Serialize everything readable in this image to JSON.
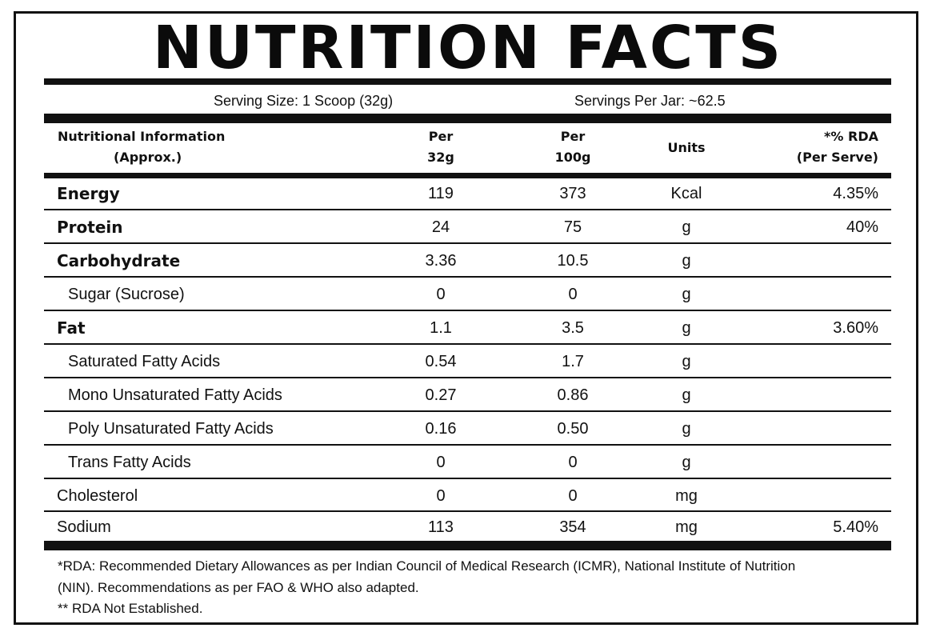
{
  "title": "NUTRITION FACTS",
  "serving": {
    "size": "Serving Size: 1 Scoop (32g)",
    "per_jar": "Servings Per Jar: ~62.5"
  },
  "headers": {
    "nutrition_line1": "Nutritional Information",
    "nutrition_line2": "(Approx.)",
    "per32_line1": "Per",
    "per32_line2": "32g",
    "per100_line1": "Per",
    "per100_line2": "100g",
    "units": "Units",
    "rda_line1": "*% RDA",
    "rda_line2": "(Per Serve)"
  },
  "rows": [
    {
      "name": "Energy",
      "per32": "119",
      "per100": "373",
      "unit": "Kcal",
      "rda": "4.35%"
    },
    {
      "name": "Protein",
      "per32": "24",
      "per100": "75",
      "unit": "g",
      "rda": "40%"
    },
    {
      "name": "Carbohydrate",
      "per32": "3.36",
      "per100": "10.5",
      "unit": "g",
      "rda": ""
    },
    {
      "name": "Sugar (Sucrose)",
      "per32": "0",
      "per100": "0",
      "unit": "g",
      "rda": ""
    },
    {
      "name": "Fat",
      "per32": "1.1",
      "per100": "3.5",
      "unit": "g",
      "rda": "3.60%"
    },
    {
      "name": "Saturated Fatty Acids",
      "per32": "0.54",
      "per100": "1.7",
      "unit": "g",
      "rda": ""
    },
    {
      "name": "Mono Unsaturated Fatty Acids",
      "per32": "0.27",
      "per100": "0.86",
      "unit": "g",
      "rda": ""
    },
    {
      "name": "Poly Unsaturated Fatty Acids",
      "per32": "0.16",
      "per100": "0.50",
      "unit": "g",
      "rda": ""
    },
    {
      "name": "Trans Fatty Acids",
      "per32": "0",
      "per100": "0",
      "unit": "g",
      "rda": ""
    },
    {
      "name": "Cholesterol",
      "per32": "0",
      "per100": "0",
      "unit": "mg",
      "rda": ""
    },
    {
      "name": "Sodium",
      "per32": "113",
      "per100": "354",
      "unit": "mg",
      "rda": "5.40%"
    }
  ],
  "footnotes": {
    "line1": "*RDA: Recommended Dietary Allowances as per Indian Council of Medical Research (ICMR), National Institute of Nutrition",
    "line2": "(NIN). Recommendations as per FAO & WHO also adapted.",
    "line3": "** RDA Not Established."
  },
  "colors": {
    "ink": "#111111",
    "background": "#ffffff"
  }
}
